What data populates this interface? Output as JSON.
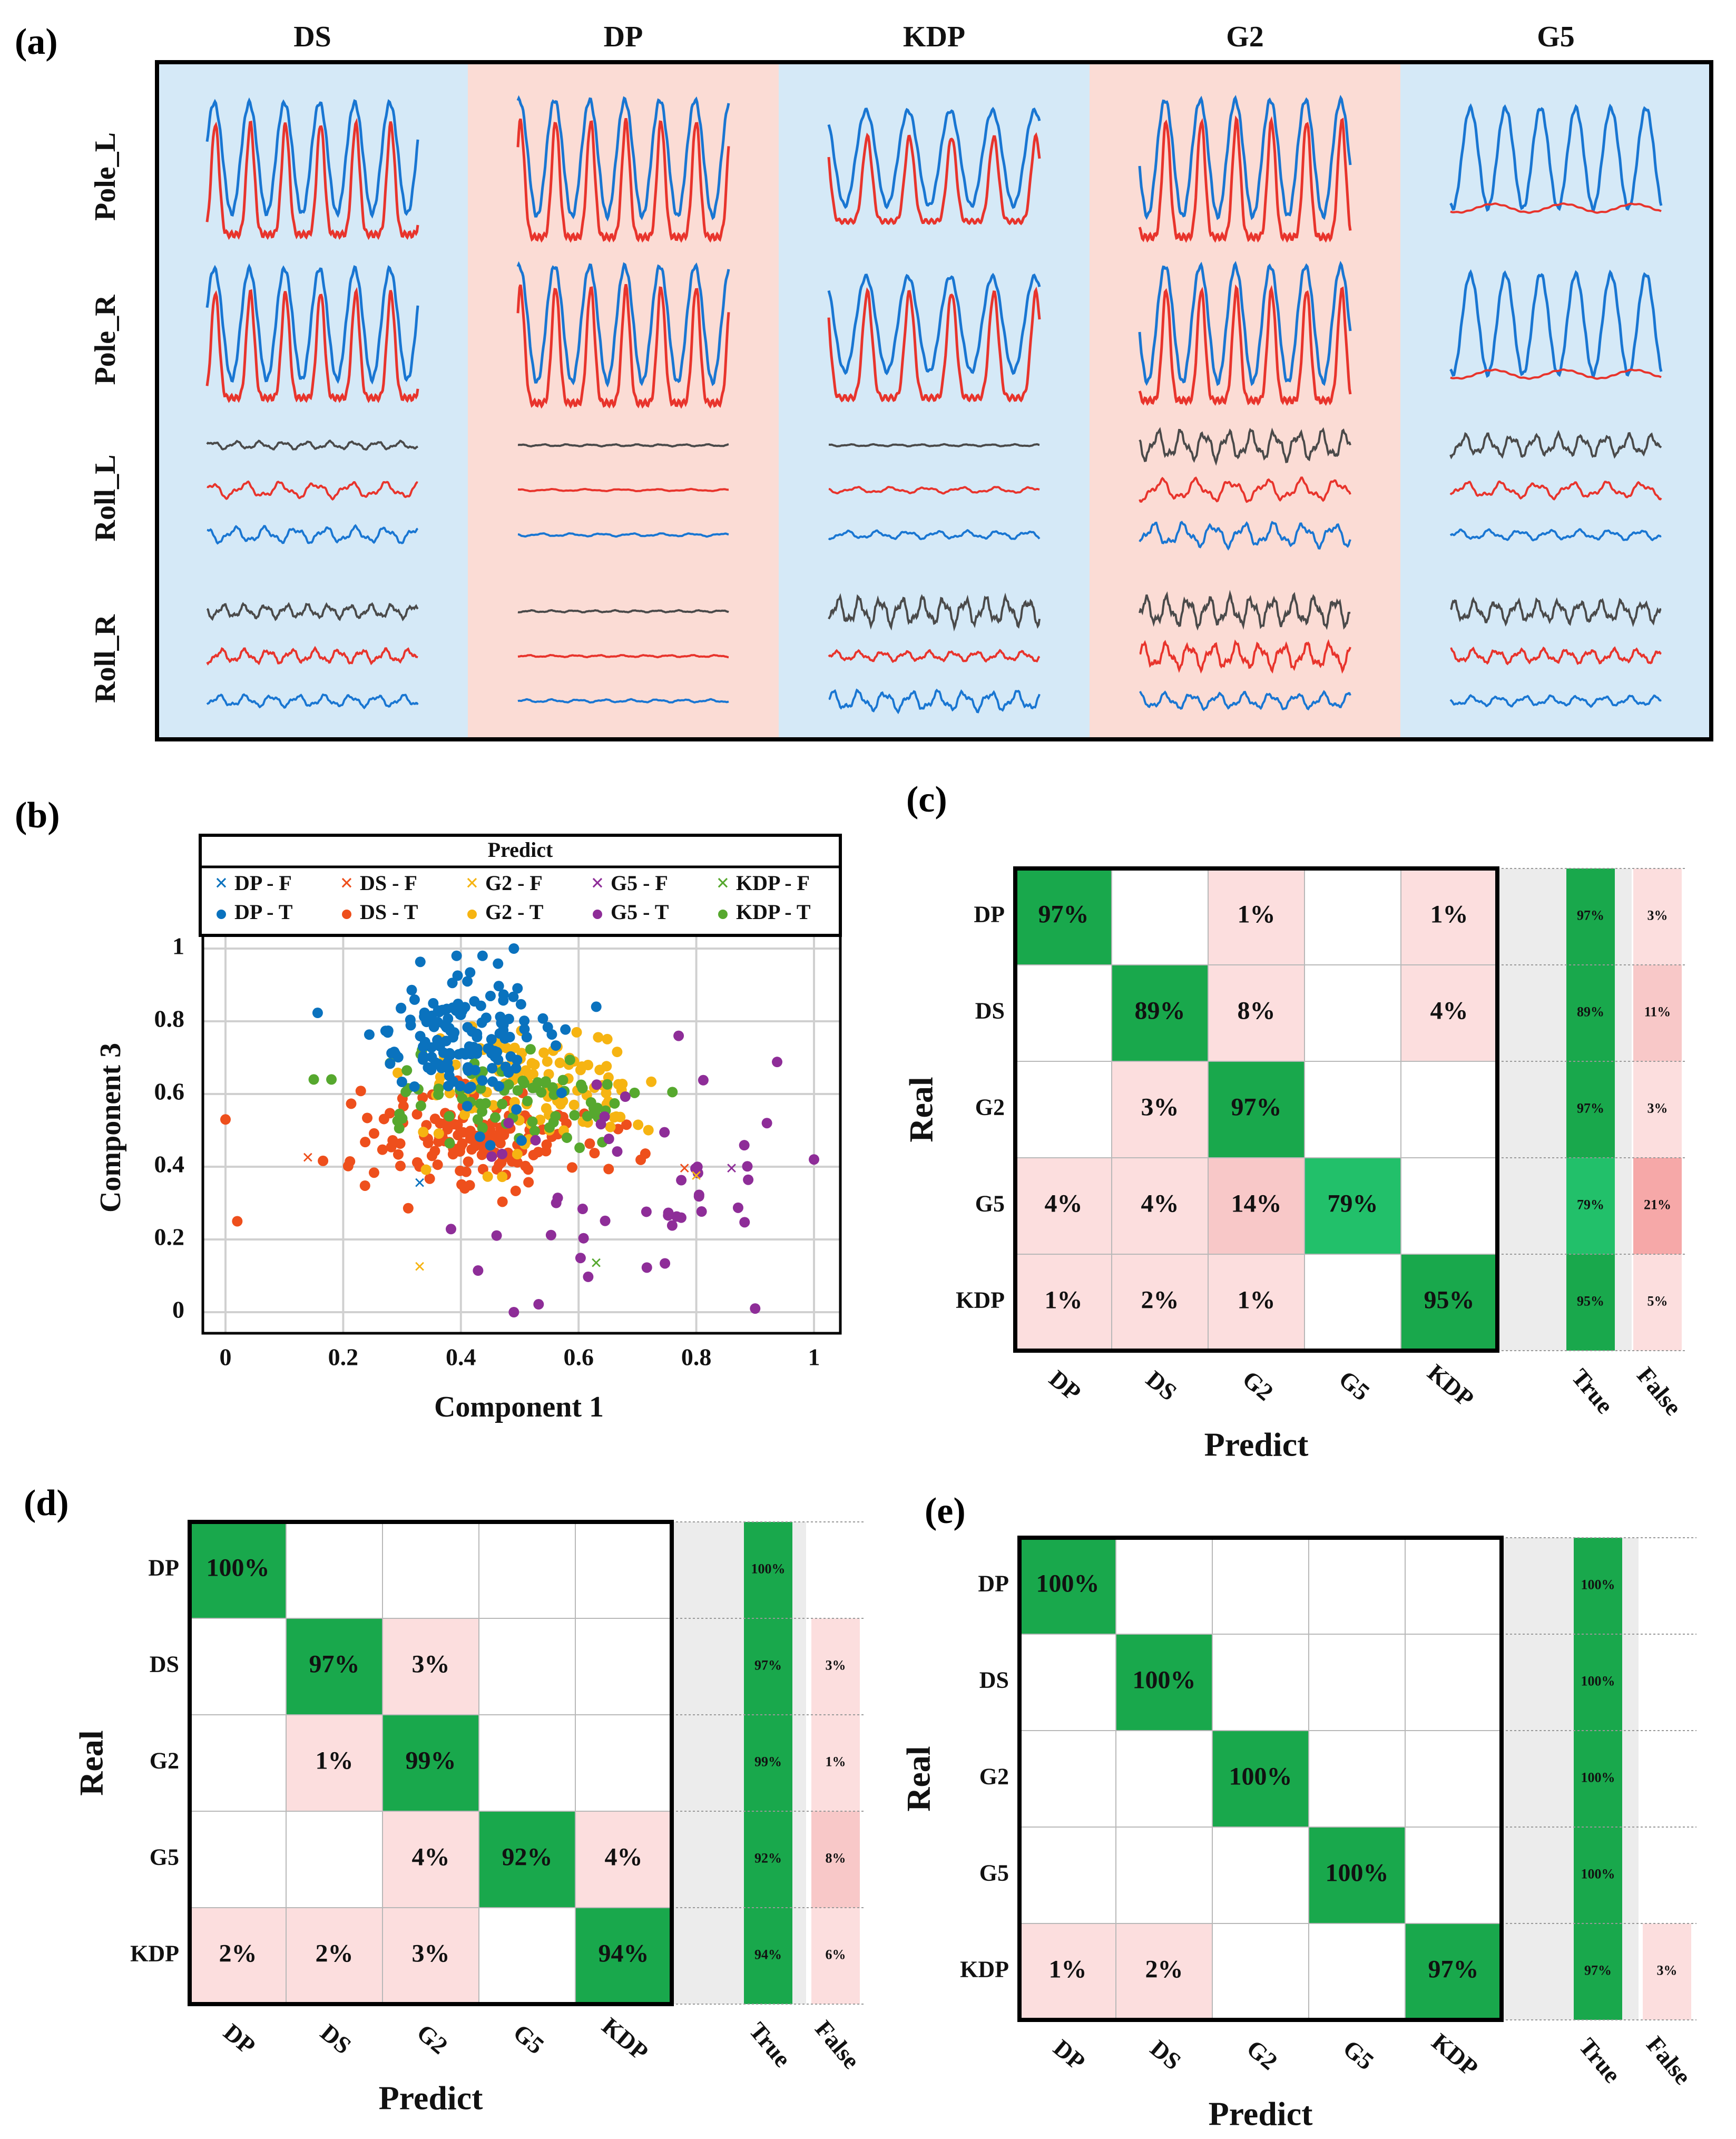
{
  "panel_labels": {
    "a": "(a)",
    "b": "(b)",
    "c": "(c)",
    "d": "(d)",
    "e": "(e)"
  },
  "colors": {
    "bg_blue": "#d5e9f7",
    "bg_pink": "#fbdcd5",
    "line_blue": "#1976d2",
    "line_red": "#e8342c",
    "line_black": "#4a4a4a",
    "scatter_DP": "#0a72be",
    "scatter_DS": "#ee4f1c",
    "scatter_G2": "#f6b412",
    "scatter_G5": "#8e2d98",
    "scatter_KDP": "#56a82e",
    "cm_high": "#19a84c",
    "cm_high2": "#22c06a",
    "cm_low": "#fcdede",
    "cm_mid": "#f8c8c8",
    "cm_false_high": "#f6a8a8",
    "side_gray": "#ececec"
  },
  "panel_a": {
    "columns": [
      "DS",
      "DP",
      "KDP",
      "G2",
      "G5"
    ],
    "rows": [
      "Pole_L",
      "Pole_R",
      "Roll_L",
      "Roll_R"
    ]
  },
  "chart_data": [
    {
      "type": "scatter",
      "panel": "b",
      "legend_title": "Predict",
      "legend": [
        "DP - F",
        "DS - F",
        "G2 - F",
        "G5 - F",
        "KDP - F",
        "DP - T",
        "DS - T",
        "G2 - T",
        "G5 - T",
        "KDP - T"
      ],
      "xlabel": "Component 1",
      "ylabel": "Component 3",
      "xlim": [
        0,
        1
      ],
      "ylim": [
        0,
        1
      ],
      "xticks": [
        "0",
        "0.2",
        "0.4",
        "0.6",
        "0.8",
        "1"
      ],
      "yticks": [
        "0",
        "0.2",
        "0.4",
        "0.6",
        "0.8",
        "1"
      ],
      "grid": true,
      "series_T": {
        "DP": {
          "n": 150,
          "cx": 0.4,
          "cy": 0.76,
          "sx": 0.07,
          "sy": 0.09
        },
        "DS": {
          "n": 150,
          "cx": 0.43,
          "cy": 0.48,
          "sx": 0.1,
          "sy": 0.07
        },
        "G2": {
          "n": 110,
          "cx": 0.53,
          "cy": 0.62,
          "sx": 0.1,
          "sy": 0.08
        },
        "G5": {
          "n": 45,
          "cx": 0.66,
          "cy": 0.33,
          "sx": 0.15,
          "sy": 0.14
        },
        "KDP": {
          "n": 80,
          "cx": 0.46,
          "cy": 0.58,
          "sx": 0.11,
          "sy": 0.06
        }
      },
      "series_F": [
        {
          "cls": "DP",
          "x": 0.33,
          "y": 0.35
        },
        {
          "cls": "DS",
          "x": 0.14,
          "y": 0.42
        },
        {
          "cls": "DS",
          "x": 0.78,
          "y": 0.39
        },
        {
          "cls": "G2",
          "x": 0.33,
          "y": 0.12
        },
        {
          "cls": "G2",
          "x": 0.8,
          "y": 0.37
        },
        {
          "cls": "G5",
          "x": 0.86,
          "y": 0.39
        },
        {
          "cls": "KDP",
          "x": 0.63,
          "y": 0.13
        }
      ],
      "extra_T": [
        {
          "cls": "DS",
          "x": 0.0,
          "y": 0.53
        },
        {
          "cls": "DS",
          "x": 0.02,
          "y": 0.25
        },
        {
          "cls": "G5",
          "x": 1.0,
          "y": 0.42
        },
        {
          "cls": "G5",
          "x": 0.92,
          "y": 0.52
        },
        {
          "cls": "G5",
          "x": 0.9,
          "y": 0.01
        },
        {
          "cls": "G5",
          "x": 0.49,
          "y": 0.0
        },
        {
          "cls": "G5",
          "x": 0.77,
          "y": 0.76
        },
        {
          "cls": "DP",
          "x": 0.63,
          "y": 0.84
        },
        {
          "cls": "DP",
          "x": 0.49,
          "y": 1.0
        },
        {
          "cls": "KDP",
          "x": 0.15,
          "y": 0.64
        },
        {
          "cls": "KDP",
          "x": 0.18,
          "y": 0.64
        }
      ]
    },
    {
      "type": "heatmap",
      "panel": "c",
      "ylabel": "Real",
      "xlabel": "Predict",
      "categories": [
        "DP",
        "DS",
        "G2",
        "G5",
        "KDP"
      ],
      "matrix": [
        [
          "97%",
          "",
          "1%",
          "",
          "1%"
        ],
        [
          "",
          "89%",
          "8%",
          "",
          "4%"
        ],
        [
          "",
          "3%",
          "97%",
          "",
          ""
        ],
        [
          "4%",
          "4%",
          "14%",
          "79%",
          ""
        ],
        [
          "1%",
          "2%",
          "1%",
          "",
          "95%"
        ]
      ],
      "true_col": [
        "97%",
        "89%",
        "97%",
        "79%",
        "95%"
      ],
      "false_col": [
        "3%",
        "11%",
        "3%",
        "21%",
        "5%"
      ],
      "side_labels": [
        "True",
        "False"
      ]
    },
    {
      "type": "heatmap",
      "panel": "d",
      "ylabel": "Real",
      "xlabel": "Predict",
      "categories": [
        "DP",
        "DS",
        "G2",
        "G5",
        "KDP"
      ],
      "matrix": [
        [
          "100%",
          "",
          "",
          "",
          ""
        ],
        [
          "",
          "97%",
          "3%",
          "",
          ""
        ],
        [
          "",
          "1%",
          "99%",
          "",
          ""
        ],
        [
          "",
          "",
          "4%",
          "92%",
          "4%"
        ],
        [
          "2%",
          "2%",
          "3%",
          "",
          "94%"
        ]
      ],
      "true_col": [
        "100%",
        "97%",
        "99%",
        "92%",
        "94%"
      ],
      "false_col": [
        "",
        "3%",
        "1%",
        "8%",
        "6%"
      ],
      "side_labels": [
        "True",
        "False"
      ]
    },
    {
      "type": "heatmap",
      "panel": "e",
      "ylabel": "Real",
      "xlabel": "Predict",
      "categories": [
        "DP",
        "DS",
        "G2",
        "G5",
        "KDP"
      ],
      "matrix": [
        [
          "100%",
          "",
          "",
          "",
          ""
        ],
        [
          "",
          "100%",
          "",
          "",
          ""
        ],
        [
          "",
          "",
          "100%",
          "",
          ""
        ],
        [
          "",
          "",
          "",
          "100%",
          ""
        ],
        [
          "1%",
          "2%",
          "",
          "",
          "97%"
        ]
      ],
      "true_col": [
        "100%",
        "100%",
        "100%",
        "100%",
        "97%"
      ],
      "false_col": [
        "",
        "",
        "",
        "",
        "3%"
      ],
      "side_labels": [
        "True",
        "False"
      ]
    }
  ]
}
